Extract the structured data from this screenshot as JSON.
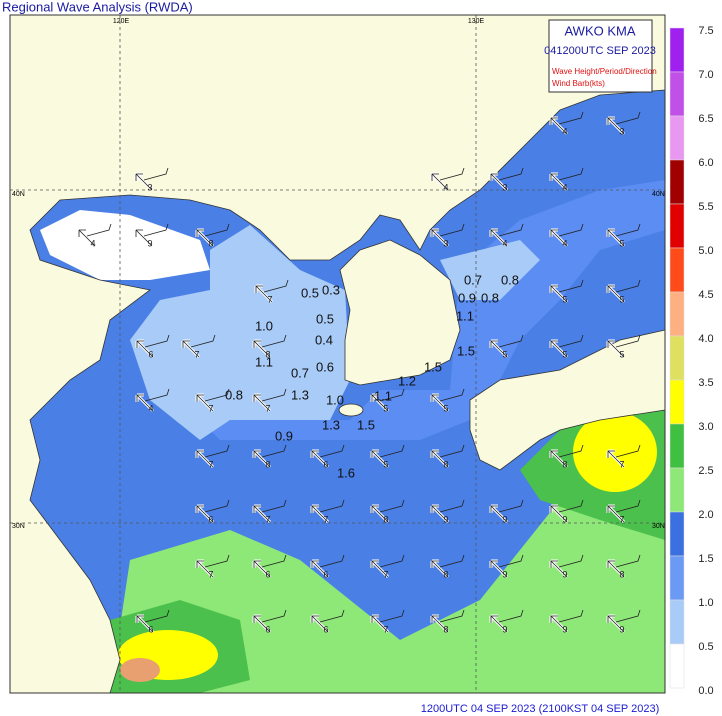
{
  "header": {
    "title": "Regional Wave Analysis (RWDA)"
  },
  "legend_box": {
    "lines": [
      "AWKO  KMA",
      "041200UTC SEP 2023",
      "Wave Height/Period/Direction",
      "Wind Barb(kts)"
    ]
  },
  "grid_labels": {
    "lon": [
      "120E",
      "130E"
    ],
    "lat": [
      "40N",
      "30N"
    ]
  },
  "colorbar": {
    "labels": [
      "7.5",
      "7.0",
      "6.5",
      "6.0",
      "5.5",
      "5.0",
      "4.5",
      "4.0",
      "3.5",
      "3.0",
      "2.5",
      "2.0",
      "1.5",
      "1.0",
      "0.5",
      "0.0"
    ]
  },
  "wave_heights": [
    "0.5",
    "0.3",
    "0.5",
    "0.4",
    "0.6",
    "0.7",
    "1.0",
    "1.1",
    "0.8",
    "1.3",
    "1.0",
    "1.3",
    "1.5",
    "1.1",
    "1.2",
    "1.5",
    "1.5",
    "1.1",
    "0.7",
    "0.8",
    "0.9",
    "0.8",
    "0.9",
    "1.6"
  ],
  "periods": [
    "3",
    "4",
    "9",
    "8",
    "7",
    "6",
    "7",
    "4",
    "7",
    "8",
    "7",
    "7",
    "8",
    "6",
    "5",
    "8",
    "6",
    "7",
    "7",
    "8",
    "9",
    "4",
    "3",
    "4",
    "3",
    "4",
    "4",
    "5",
    "5",
    "5",
    "5",
    "5",
    "5",
    "5",
    "5",
    "8",
    "7",
    "9",
    "9",
    "7",
    "7",
    "6",
    "6",
    "7",
    "8",
    "9",
    "9",
    "8",
    "6",
    "6",
    "6",
    "7",
    "8",
    "9",
    "9",
    "9",
    "4",
    "3"
  ],
  "footer": "1200UTC 04 SEP 2023 (2100KST 04 SEP 2023)"
}
